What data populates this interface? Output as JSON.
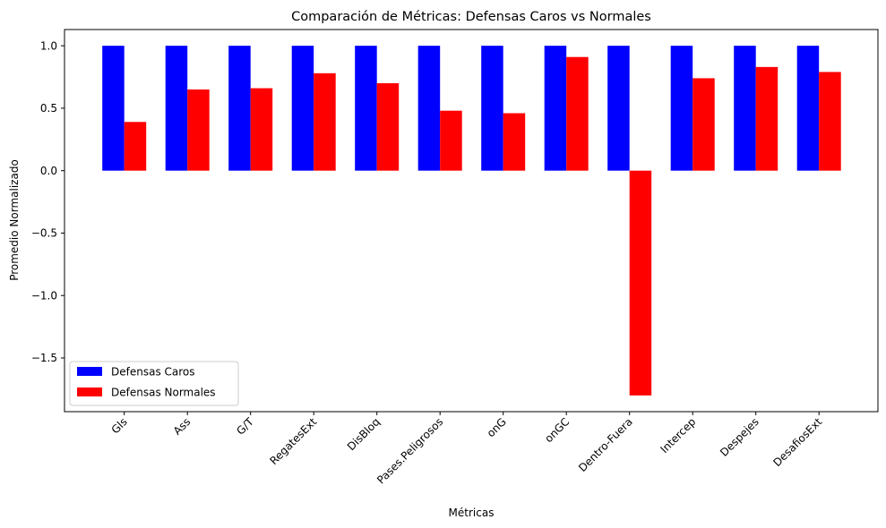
{
  "chart_data": {
    "type": "bar",
    "title": "Comparación de Métricas: Defensas Caros vs Normales",
    "xlabel": "Métricas",
    "ylabel": "Promedio Normalizado",
    "categories": [
      "Gls",
      "Ass",
      "G/T",
      "RegatesExt",
      "DisBloq",
      "Pases.Peligrosos",
      "onG",
      "onGC",
      "Dentro-Fuera",
      "Intercep",
      "Despejes",
      "DesafiosExt"
    ],
    "series": [
      {
        "name": "Defensas Caros",
        "color": "#0000ff",
        "values": [
          1.0,
          1.0,
          1.0,
          1.0,
          1.0,
          1.0,
          1.0,
          1.0,
          1.0,
          1.0,
          1.0,
          1.0
        ]
      },
      {
        "name": "Defensas Normales",
        "color": "#ff0000",
        "values": [
          0.39,
          0.65,
          0.66,
          0.78,
          0.7,
          0.48,
          0.46,
          0.91,
          -1.8,
          0.74,
          0.83,
          0.79
        ]
      }
    ],
    "ylim": [
      -1.93,
      1.13
    ],
    "yticks": [
      "1.0",
      "0.5",
      "0.0",
      "−0.5",
      "−1.0",
      "−1.5"
    ],
    "ytick_values": [
      1.0,
      0.5,
      0.0,
      -0.5,
      -1.0,
      -1.5
    ],
    "legend_position": "lower-left",
    "grid": false
  }
}
